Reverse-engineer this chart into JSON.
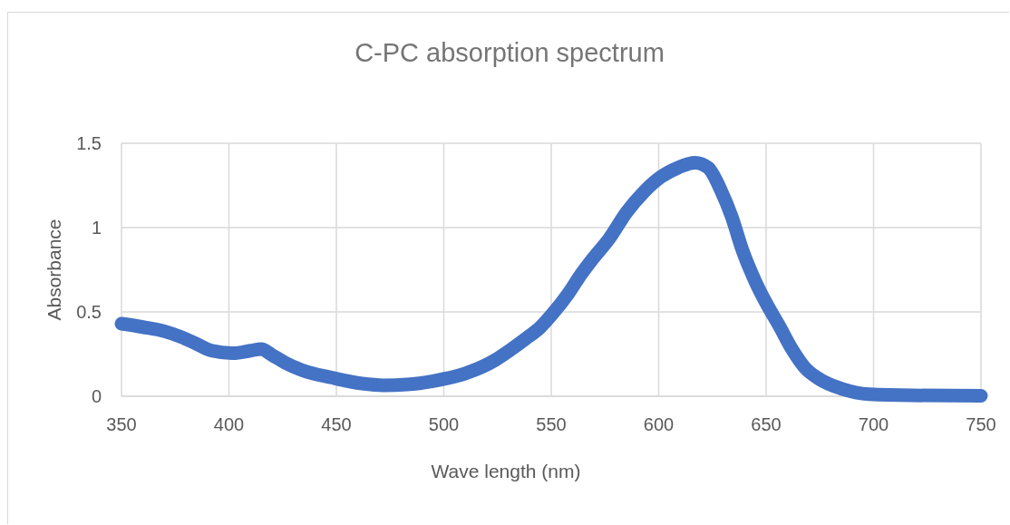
{
  "chart_data": {
    "type": "line",
    "title": "C-PC absorption spectrum",
    "xlabel": "Wave length (nm)",
    "ylabel": "Absorbance",
    "x": [
      350,
      360,
      370,
      378,
      385,
      392,
      402,
      410,
      415,
      420,
      426,
      434,
      448,
      462,
      472,
      483,
      495,
      510,
      524,
      531,
      538,
      545,
      550,
      558,
      564,
      569,
      577,
      585,
      593,
      601,
      609,
      617,
      623,
      629,
      634,
      639,
      645,
      651,
      656,
      662,
      668,
      675,
      685,
      698,
      718,
      750
    ],
    "series": [
      {
        "color": "#4472c4",
        "values": [
          0.43,
          0.41,
          0.385,
          0.35,
          0.31,
          0.27,
          0.255,
          0.27,
          0.28,
          0.245,
          0.2,
          0.155,
          0.11,
          0.075,
          0.065,
          0.07,
          0.09,
          0.135,
          0.215,
          0.275,
          0.34,
          0.41,
          0.48,
          0.61,
          0.725,
          0.81,
          0.935,
          1.09,
          1.21,
          1.3,
          1.355,
          1.385,
          1.355,
          1.22,
          1.065,
          0.865,
          0.68,
          0.53,
          0.42,
          0.28,
          0.17,
          0.1,
          0.045,
          0.012,
          0.005,
          0.003
        ]
      }
    ],
    "xlim": [
      350,
      750
    ],
    "xticks": [
      350,
      400,
      450,
      500,
      550,
      600,
      650,
      700,
      750
    ],
    "ylim": [
      0,
      1.5
    ],
    "yticks": [
      0,
      0.5,
      1,
      1.5
    ],
    "grid": true
  }
}
